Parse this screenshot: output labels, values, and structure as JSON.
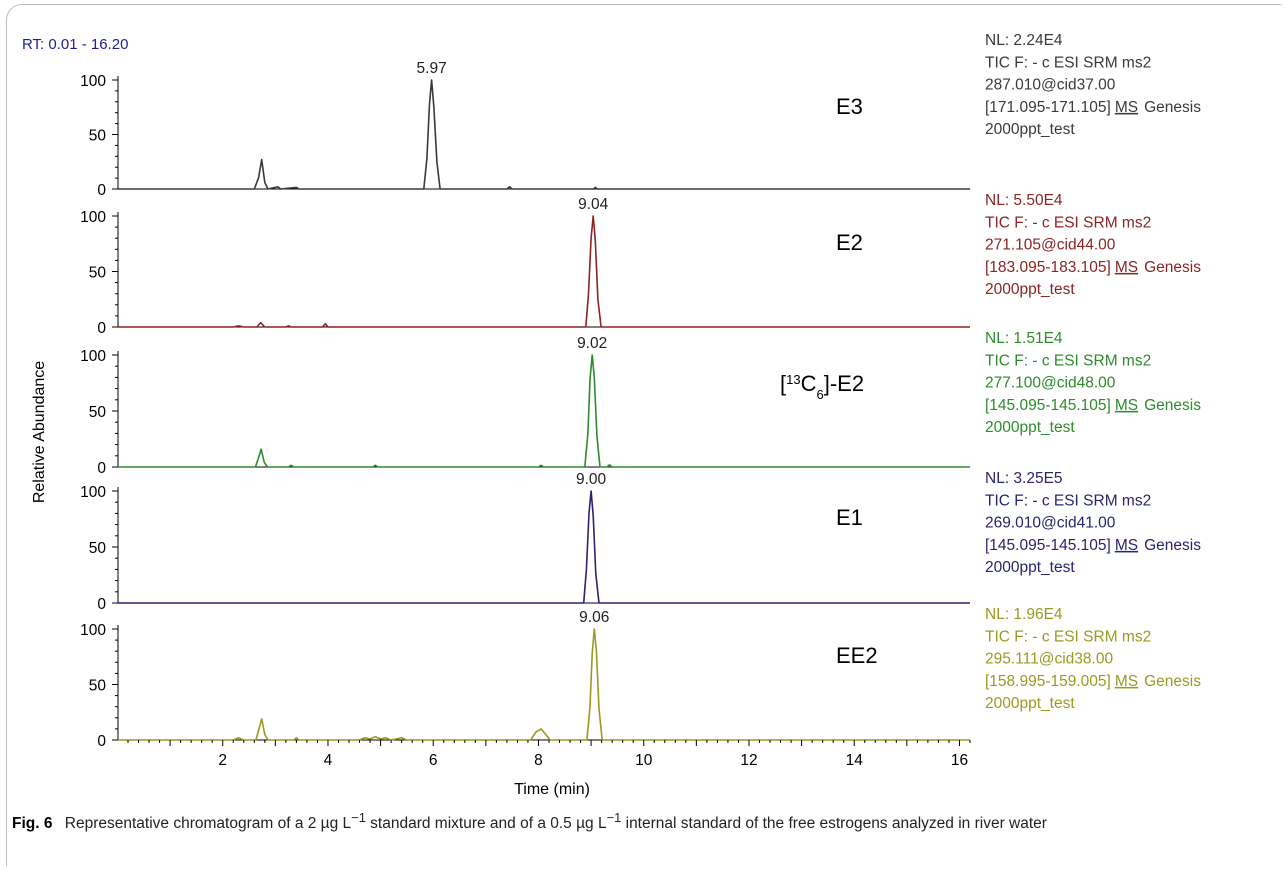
{
  "chart_data": {
    "type": "line",
    "rt_range": "RT: 0.01 - 16.20",
    "xlabel": "Time (min)",
    "ylabel": "Relative Abundance",
    "xlim": [
      0.01,
      16.2
    ],
    "x_ticks": [
      2,
      4,
      6,
      8,
      10,
      12,
      14,
      16
    ],
    "y_ticks": [
      0,
      50,
      100
    ],
    "ylim": [
      0,
      100
    ],
    "traces": [
      {
        "name": "E3",
        "color": "#3a3a3a",
        "apex_label": "5.97",
        "apex_x": 5.97,
        "nl": "NL: 2.24E4",
        "filter": "TIC F: - c ESI SRM ms2",
        "precursor": "287.010@cid37.00",
        "range_text": "[171.095-171.105]",
        "ms": "MS",
        "file": "Genesis",
        "sample": "2000ppt_test",
        "points": [
          {
            "x": 0.01,
            "y": 0
          },
          {
            "x": 2.6,
            "y": 0
          },
          {
            "x": 2.68,
            "y": 10
          },
          {
            "x": 2.74,
            "y": 27
          },
          {
            "x": 2.8,
            "y": 6
          },
          {
            "x": 2.86,
            "y": 0
          },
          {
            "x": 3.05,
            "y": 2
          },
          {
            "x": 3.1,
            "y": 0
          },
          {
            "x": 3.4,
            "y": 1.5
          },
          {
            "x": 3.45,
            "y": 0
          },
          {
            "x": 5.82,
            "y": 0
          },
          {
            "x": 5.88,
            "y": 28
          },
          {
            "x": 5.93,
            "y": 78
          },
          {
            "x": 5.97,
            "y": 100
          },
          {
            "x": 6.01,
            "y": 76
          },
          {
            "x": 6.07,
            "y": 25
          },
          {
            "x": 6.13,
            "y": 0
          },
          {
            "x": 7.4,
            "y": 0
          },
          {
            "x": 7.45,
            "y": 2
          },
          {
            "x": 7.5,
            "y": 0
          },
          {
            "x": 9.05,
            "y": 0
          },
          {
            "x": 9.08,
            "y": 1.5
          },
          {
            "x": 9.12,
            "y": 0
          },
          {
            "x": 16.2,
            "y": 0
          }
        ]
      },
      {
        "name": "E2",
        "color": "#8b2424",
        "apex_label": "9.04",
        "apex_x": 9.04,
        "nl": "NL: 5.50E4",
        "filter": "TIC F: - c ESI SRM ms2",
        "precursor": "271.105@cid44.00",
        "range_text": "[183.095-183.105]",
        "ms": "MS",
        "file": "Genesis",
        "sample": "2000ppt_test",
        "points": [
          {
            "x": 0.01,
            "y": 0
          },
          {
            "x": 2.2,
            "y": 0
          },
          {
            "x": 2.3,
            "y": 1
          },
          {
            "x": 2.4,
            "y": 0
          },
          {
            "x": 2.65,
            "y": 0
          },
          {
            "x": 2.72,
            "y": 4
          },
          {
            "x": 2.8,
            "y": 0
          },
          {
            "x": 3.2,
            "y": 0
          },
          {
            "x": 3.25,
            "y": 1
          },
          {
            "x": 3.3,
            "y": 0
          },
          {
            "x": 3.9,
            "y": 0
          },
          {
            "x": 3.95,
            "y": 3
          },
          {
            "x": 4.0,
            "y": 0
          },
          {
            "x": 8.9,
            "y": 0
          },
          {
            "x": 8.95,
            "y": 30
          },
          {
            "x": 9.0,
            "y": 80
          },
          {
            "x": 9.04,
            "y": 100
          },
          {
            "x": 9.08,
            "y": 78
          },
          {
            "x": 9.13,
            "y": 25
          },
          {
            "x": 9.19,
            "y": 0
          },
          {
            "x": 16.2,
            "y": 0
          }
        ]
      },
      {
        "name": "[13C6]-E2",
        "label_base": "[",
        "label_sup": "13",
        "label_mid": "C",
        "label_sub": "6",
        "label_end": "]-E2",
        "color": "#2e8b2e",
        "apex_label": "9.02",
        "apex_x": 9.02,
        "nl": "NL: 1.51E4",
        "filter": "TIC F: - c ESI SRM ms2",
        "precursor": "277.100@cid48.00",
        "range_text": "[145.095-145.105]",
        "ms": "MS",
        "file": "Genesis",
        "sample": "2000ppt_test",
        "points": [
          {
            "x": 0.01,
            "y": 0
          },
          {
            "x": 2.62,
            "y": 0
          },
          {
            "x": 2.68,
            "y": 8
          },
          {
            "x": 2.73,
            "y": 16
          },
          {
            "x": 2.79,
            "y": 4
          },
          {
            "x": 2.85,
            "y": 0
          },
          {
            "x": 3.25,
            "y": 0
          },
          {
            "x": 3.3,
            "y": 1.5
          },
          {
            "x": 3.35,
            "y": 0
          },
          {
            "x": 4.85,
            "y": 0
          },
          {
            "x": 4.9,
            "y": 1.5
          },
          {
            "x": 4.95,
            "y": 0
          },
          {
            "x": 8.0,
            "y": 0
          },
          {
            "x": 8.05,
            "y": 1.5
          },
          {
            "x": 8.1,
            "y": 0
          },
          {
            "x": 8.88,
            "y": 0
          },
          {
            "x": 8.94,
            "y": 30
          },
          {
            "x": 8.98,
            "y": 78
          },
          {
            "x": 9.02,
            "y": 100
          },
          {
            "x": 9.06,
            "y": 80
          },
          {
            "x": 9.11,
            "y": 28
          },
          {
            "x": 9.17,
            "y": 0
          },
          {
            "x": 9.3,
            "y": 0
          },
          {
            "x": 9.35,
            "y": 2
          },
          {
            "x": 9.4,
            "y": 0
          },
          {
            "x": 16.2,
            "y": 0
          }
        ]
      },
      {
        "name": "E1",
        "color": "#26266e",
        "apex_label": "9.00",
        "apex_x": 9.0,
        "nl": "NL: 3.25E5",
        "filter": "TIC F: - c ESI SRM ms2",
        "precursor": "269.010@cid41.00",
        "range_text": "[145.095-145.105]",
        "ms": "MS",
        "file": "Genesis",
        "sample": "2000ppt_test",
        "points": [
          {
            "x": 0.01,
            "y": 0
          },
          {
            "x": 8.86,
            "y": 0
          },
          {
            "x": 8.91,
            "y": 30
          },
          {
            "x": 8.96,
            "y": 80
          },
          {
            "x": 9.0,
            "y": 100
          },
          {
            "x": 9.04,
            "y": 78
          },
          {
            "x": 9.09,
            "y": 26
          },
          {
            "x": 9.15,
            "y": 0
          },
          {
            "x": 16.2,
            "y": 0
          }
        ]
      },
      {
        "name": "EE2",
        "color": "#9a9a22",
        "apex_label": "9.06",
        "apex_x": 9.06,
        "nl": "NL: 1.96E4",
        "filter": "TIC F: - c ESI SRM ms2",
        "precursor": "295.111@cid38.00",
        "range_text": "[158.995-159.005]",
        "ms": "MS",
        "file": "Genesis",
        "sample": "2000ppt_test",
        "points": [
          {
            "x": 0.01,
            "y": 0
          },
          {
            "x": 2.2,
            "y": 0
          },
          {
            "x": 2.3,
            "y": 2
          },
          {
            "x": 2.4,
            "y": 0
          },
          {
            "x": 2.63,
            "y": 0
          },
          {
            "x": 2.69,
            "y": 10
          },
          {
            "x": 2.74,
            "y": 19
          },
          {
            "x": 2.8,
            "y": 5
          },
          {
            "x": 2.86,
            "y": 0
          },
          {
            "x": 3.35,
            "y": 0
          },
          {
            "x": 3.4,
            "y": 2
          },
          {
            "x": 3.45,
            "y": 0
          },
          {
            "x": 4.6,
            "y": 0
          },
          {
            "x": 4.7,
            "y": 2
          },
          {
            "x": 4.8,
            "y": 1
          },
          {
            "x": 4.9,
            "y": 3
          },
          {
            "x": 5.0,
            "y": 1
          },
          {
            "x": 5.1,
            "y": 2
          },
          {
            "x": 5.2,
            "y": 0
          },
          {
            "x": 5.4,
            "y": 2
          },
          {
            "x": 5.5,
            "y": 0
          },
          {
            "x": 7.85,
            "y": 0
          },
          {
            "x": 7.95,
            "y": 7
          },
          {
            "x": 8.05,
            "y": 10
          },
          {
            "x": 8.12,
            "y": 6
          },
          {
            "x": 8.22,
            "y": 0
          },
          {
            "x": 8.92,
            "y": 0
          },
          {
            "x": 8.98,
            "y": 30
          },
          {
            "x": 9.02,
            "y": 78
          },
          {
            "x": 9.06,
            "y": 100
          },
          {
            "x": 9.1,
            "y": 80
          },
          {
            "x": 9.15,
            "y": 28
          },
          {
            "x": 9.21,
            "y": 0
          },
          {
            "x": 16.2,
            "y": 0
          }
        ]
      }
    ]
  },
  "caption": {
    "fig_label": "Fig. 6",
    "line1": "Representative chromatogram of a 2 µg L",
    "sup1": "−1",
    "line2": " standard mixture and of a 0.5 µg L",
    "sup2": "−1",
    "line3": " internal standard of the free estrogens analyzed in river water"
  },
  "colors": {
    "axis": "#000000",
    "rt_label": "#1f1f8c"
  }
}
